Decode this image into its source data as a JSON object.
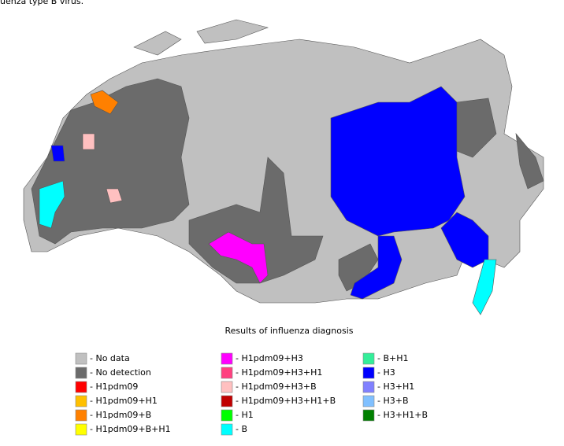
{
  "caption": "uenza type B virus.",
  "legend": {
    "title": "Results of influenza diagnosis",
    "items": [
      {
        "label": "- No data",
        "color": "#c0c0c0"
      },
      {
        "label": "- No detection",
        "color": "#6b6b6b"
      },
      {
        "label": "- H1pdm09",
        "color": "#ff0000"
      },
      {
        "label": "- H1pdm09+H1",
        "color": "#ffc000"
      },
      {
        "label": "- H1pdm09+B",
        "color": "#ff8000"
      },
      {
        "label": "- H1pdm09+B+H1",
        "color": "#ffff00"
      },
      {
        "label": "- H1pdm09+H3",
        "color": "#ff00ff"
      },
      {
        "label": "- H1pdm09+H3+H1",
        "color": "#ff4080"
      },
      {
        "label": "- H1pdm09+H3+B",
        "color": "#ffc0c0"
      },
      {
        "label": "- H1pdm09+H3+H1+B",
        "color": "#c00000"
      },
      {
        "label": "- H1",
        "color": "#00ff00"
      },
      {
        "label": "- B",
        "color": "#00ffff"
      },
      {
        "label": "- B+H1",
        "color": "#33ee99"
      },
      {
        "label": "- H3",
        "color": "#0000ff"
      },
      {
        "label": "- H3+H1",
        "color": "#8080ff"
      },
      {
        "label": "- H3+B",
        "color": "#80c0ff"
      },
      {
        "label": "- H3+H1+B",
        "color": "#008000"
      }
    ]
  }
}
